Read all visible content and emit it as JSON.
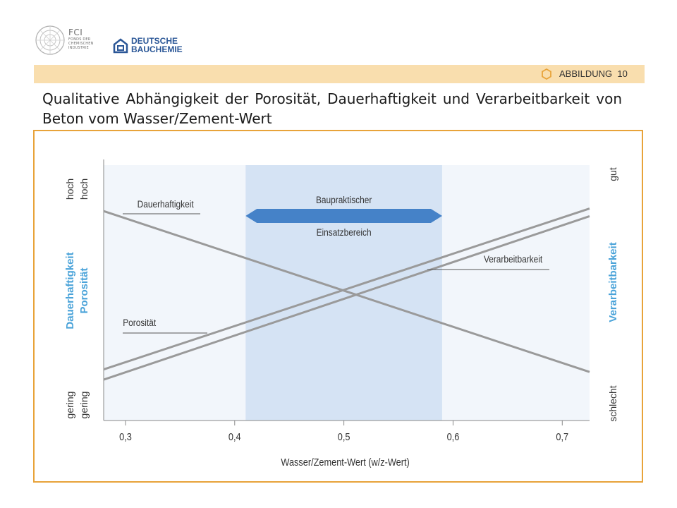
{
  "header": {
    "fci": {
      "name": "FCI",
      "lines": [
        "FONDS DER",
        "CHEMISCHEN",
        "INDUSTRIE"
      ]
    },
    "db": {
      "line1": "DEUTSCHE",
      "line2": "BAUCHEMIE"
    },
    "figure_label": "ABBILDUNG",
    "figure_number": "10",
    "colors": {
      "band": "#f9deae",
      "frame": "#e8a33a",
      "hexagon": "#e8a33a"
    },
    "icons": [
      "fci-logo-icon",
      "deutsche-bauchemie-logo-icon",
      "hexagon-icon"
    ]
  },
  "title": "Qualitative Abhängigkeit der Porosität, Dauerhaftigkeit und Verarbeitbarkeit von Beton vom Wasser/Zement-Wert",
  "chart_data": {
    "type": "line",
    "xlabel": "Wasser/Zement-Wert (w/z-Wert)",
    "xticks": [
      "0,3",
      "0,4",
      "0,5",
      "0,6",
      "0,7"
    ],
    "xlim": [
      0.28,
      0.725
    ],
    "ylim": [
      0,
      1
    ],
    "grid": false,
    "left_axis": {
      "labels": [
        "Dauerhaftigkeit",
        "Porosität"
      ],
      "top": [
        "hoch",
        "hoch"
      ],
      "bottom": [
        "gering",
        "gering"
      ]
    },
    "right_axis": {
      "label": "Verarbeitbarkeit",
      "top": "gut",
      "bottom": "schlecht"
    },
    "series": [
      {
        "name": "Dauerhaftigkeit",
        "x": [
          0.28,
          0.725
        ],
        "y": [
          0.82,
          0.19
        ]
      },
      {
        "name": "Porosität",
        "x": [
          0.28,
          0.725
        ],
        "y": [
          0.16,
          0.8
        ]
      },
      {
        "name": "Verarbeitbarkeit",
        "x": [
          0.28,
          0.725
        ],
        "y": [
          0.2,
          0.83
        ]
      }
    ],
    "shaded_region": {
      "x": [
        0.41,
        0.59
      ],
      "label_top": "Baupraktischer",
      "label_bottom": "Einsatzbereich"
    },
    "colors": {
      "plot_bg": "#f2f6fb",
      "region": "#d5e3f4",
      "arrow": "#4582c8",
      "lines": "#9a9a9a",
      "axis_label": "#4aa3d9"
    }
  }
}
